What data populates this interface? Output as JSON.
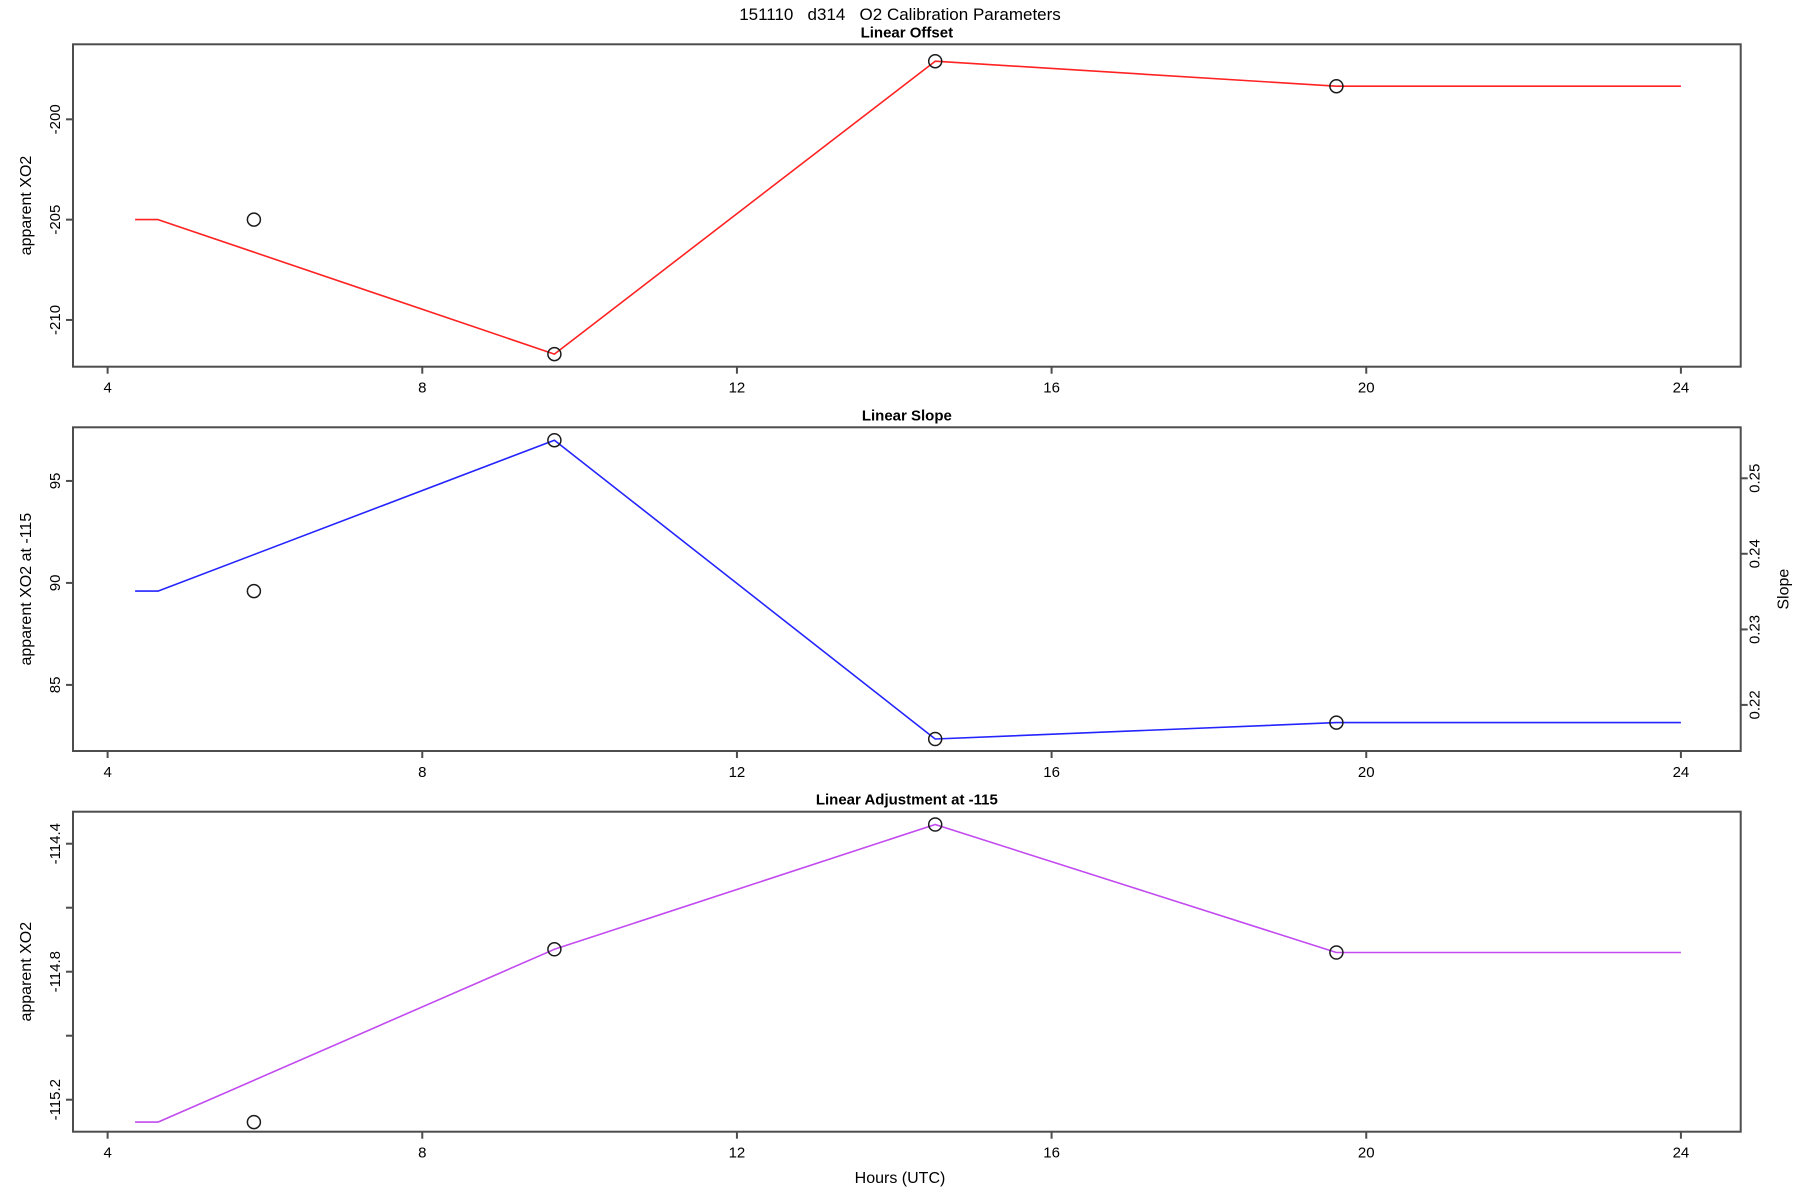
{
  "header": {
    "title": "151110   d314   O2 Calibration Parameters"
  },
  "xlabel": "Hours (UTC)",
  "style": {
    "frame_color": "#4d4d4d",
    "text_color": "#000000",
    "marker_color": "#1a1a1a",
    "marker_radius": 6.5
  },
  "chart_data": [
    {
      "type": "line",
      "title": "Linear Offset",
      "ylabel": "apparent XO2",
      "line_color": "#ff2222",
      "xlim": [
        3.56,
        24.76
      ],
      "ylim": [
        -212.33,
        -196.26
      ],
      "grid": false,
      "x_ticks": [
        {
          "v": 4,
          "label": "4"
        },
        {
          "v": 8,
          "label": "8"
        },
        {
          "v": 12,
          "label": "12"
        },
        {
          "v": 16,
          "label": "16"
        },
        {
          "v": 20,
          "label": "20"
        },
        {
          "v": 24,
          "label": "24"
        }
      ],
      "y_ticks": [
        {
          "v": -210,
          "label": "-210"
        },
        {
          "v": -205,
          "label": "-205"
        },
        {
          "v": -200,
          "label": "-200"
        }
      ],
      "line": [
        [
          4.35,
          -205.0
        ],
        [
          4.64,
          -205.0
        ],
        [
          9.68,
          -211.7
        ],
        [
          14.52,
          -197.1
        ],
        [
          19.62,
          -198.35
        ],
        [
          24,
          -198.35
        ]
      ],
      "markers": [
        [
          5.86,
          -205.0
        ],
        [
          9.68,
          -211.7
        ],
        [
          14.52,
          -197.1
        ],
        [
          19.62,
          -198.35
        ]
      ]
    },
    {
      "type": "line",
      "title": "Linear Slope",
      "ylabel": "apparent XO2 at -115",
      "line_color": "#2424ff",
      "xlim": [
        3.56,
        24.76
      ],
      "ylim": [
        81.76,
        97.63
      ],
      "grid": false,
      "x_ticks": [
        {
          "v": 4,
          "label": "4"
        },
        {
          "v": 8,
          "label": "8"
        },
        {
          "v": 12,
          "label": "12"
        },
        {
          "v": 16,
          "label": "16"
        },
        {
          "v": 20,
          "label": "20"
        },
        {
          "v": 24,
          "label": "24"
        }
      ],
      "y_ticks": [
        {
          "v": 85,
          "label": "85"
        },
        {
          "v": 90,
          "label": "90"
        },
        {
          "v": 95,
          "label": "95"
        }
      ],
      "right_axis": {
        "label": "Slope",
        "ticks": [
          {
            "v": 84.02,
            "label": "0.22"
          },
          {
            "v": 87.72,
            "label": "0.23"
          },
          {
            "v": 91.43,
            "label": "0.24"
          },
          {
            "v": 95.13,
            "label": "0.25"
          }
        ]
      },
      "line": [
        [
          4.35,
          89.6
        ],
        [
          4.64,
          89.6
        ],
        [
          9.68,
          97.0
        ],
        [
          14.52,
          82.35
        ],
        [
          19.62,
          83.15
        ],
        [
          24,
          83.15
        ]
      ],
      "markers": [
        [
          5.86,
          89.6
        ],
        [
          9.68,
          97.0
        ],
        [
          14.52,
          82.35
        ],
        [
          19.62,
          83.15
        ]
      ]
    },
    {
      "type": "line",
      "title": "Linear Adjustment at -115",
      "ylabel": "apparent XO2",
      "line_color": "#c24af0",
      "xlim": [
        3.56,
        24.76
      ],
      "ylim": [
        -115.3,
        -114.3
      ],
      "grid": false,
      "x_ticks": [
        {
          "v": 4,
          "label": "4"
        },
        {
          "v": 8,
          "label": "8"
        },
        {
          "v": 12,
          "label": "12"
        },
        {
          "v": 16,
          "label": "16"
        },
        {
          "v": 20,
          "label": "20"
        },
        {
          "v": 24,
          "label": "24"
        }
      ],
      "y_ticks": [
        {
          "v": -115.2,
          "label": "-115.2"
        },
        {
          "v": -115.0,
          "label": ""
        },
        {
          "v": -114.8,
          "label": "-114.8"
        },
        {
          "v": -114.6,
          "label": ""
        },
        {
          "v": -114.4,
          "label": "-114.4"
        }
      ],
      "line": [
        [
          4.35,
          -115.27
        ],
        [
          4.64,
          -115.27
        ],
        [
          9.68,
          -114.73
        ],
        [
          14.52,
          -114.34
        ],
        [
          19.62,
          -114.74
        ],
        [
          24,
          -114.74
        ]
      ],
      "markers": [
        [
          5.86,
          -115.27
        ],
        [
          9.68,
          -114.73
        ],
        [
          14.52,
          -114.34
        ],
        [
          19.62,
          -114.74
        ]
      ]
    }
  ]
}
